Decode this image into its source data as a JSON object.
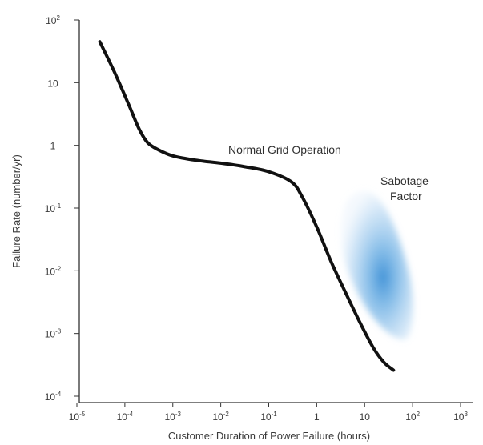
{
  "chart_data": {
    "type": "line",
    "xlabel": "Customer Duration of Power Failure (hours)",
    "ylabel": "Failure Rate (number/yr)",
    "x_scale": "log",
    "y_scale": "log",
    "xlim": [
      1e-05,
      1000
    ],
    "ylim": [
      0.0001,
      100
    ],
    "x_ticks": [
      {
        "value": 1e-05,
        "base": "10",
        "exp": "-5"
      },
      {
        "value": 0.0001,
        "base": "10",
        "exp": "-4"
      },
      {
        "value": 0.001,
        "base": "10",
        "exp": "-3"
      },
      {
        "value": 0.01,
        "base": "10",
        "exp": "-2"
      },
      {
        "value": 0.1,
        "base": "10",
        "exp": "-1"
      },
      {
        "value": 1,
        "base": "1",
        "exp": ""
      },
      {
        "value": 10,
        "base": "10",
        "exp": ""
      },
      {
        "value": 100,
        "base": "10",
        "exp": "2"
      },
      {
        "value": 1000,
        "base": "10",
        "exp": "3"
      }
    ],
    "y_ticks": [
      {
        "value": 100,
        "base": "10",
        "exp": "2"
      },
      {
        "value": 10,
        "base": "10",
        "exp": ""
      },
      {
        "value": 1,
        "base": "1",
        "exp": ""
      },
      {
        "value": 0.1,
        "base": "10",
        "exp": "-1"
      },
      {
        "value": 0.01,
        "base": "10",
        "exp": "-2"
      },
      {
        "value": 0.001,
        "base": "10",
        "exp": "-3"
      },
      {
        "value": 0.0001,
        "base": "10",
        "exp": "-4"
      }
    ],
    "series": [
      {
        "color": "#111111",
        "points": [
          [
            3e-05,
            45
          ],
          [
            6e-05,
            15
          ],
          [
            0.00012,
            4.5
          ],
          [
            0.0002,
            1.8
          ],
          [
            0.0003,
            1.1
          ],
          [
            0.0005,
            0.85
          ],
          [
            0.001,
            0.68
          ],
          [
            0.003,
            0.58
          ],
          [
            0.01,
            0.52
          ],
          [
            0.03,
            0.46
          ],
          [
            0.1,
            0.38
          ],
          [
            0.3,
            0.26
          ],
          [
            0.5,
            0.15
          ],
          [
            1,
            0.05
          ],
          [
            2,
            0.014
          ],
          [
            4,
            0.0045
          ],
          [
            8,
            0.0015
          ],
          [
            15,
            0.0006
          ],
          [
            25,
            0.00035
          ],
          [
            40,
            0.00026
          ]
        ]
      }
    ],
    "annotations": [
      {
        "text": "Normal Grid Operation"
      },
      {
        "text": "Sabotage"
      },
      {
        "text": "Factor"
      }
    ],
    "region": {
      "name": "Sabotage Factor",
      "color": "#5b9bd5",
      "x_range": [
        3,
        100
      ],
      "y_range": [
        0.0008,
        0.2
      ],
      "peak": [
        25,
        0.012
      ]
    },
    "grid": false,
    "legend": "none"
  }
}
